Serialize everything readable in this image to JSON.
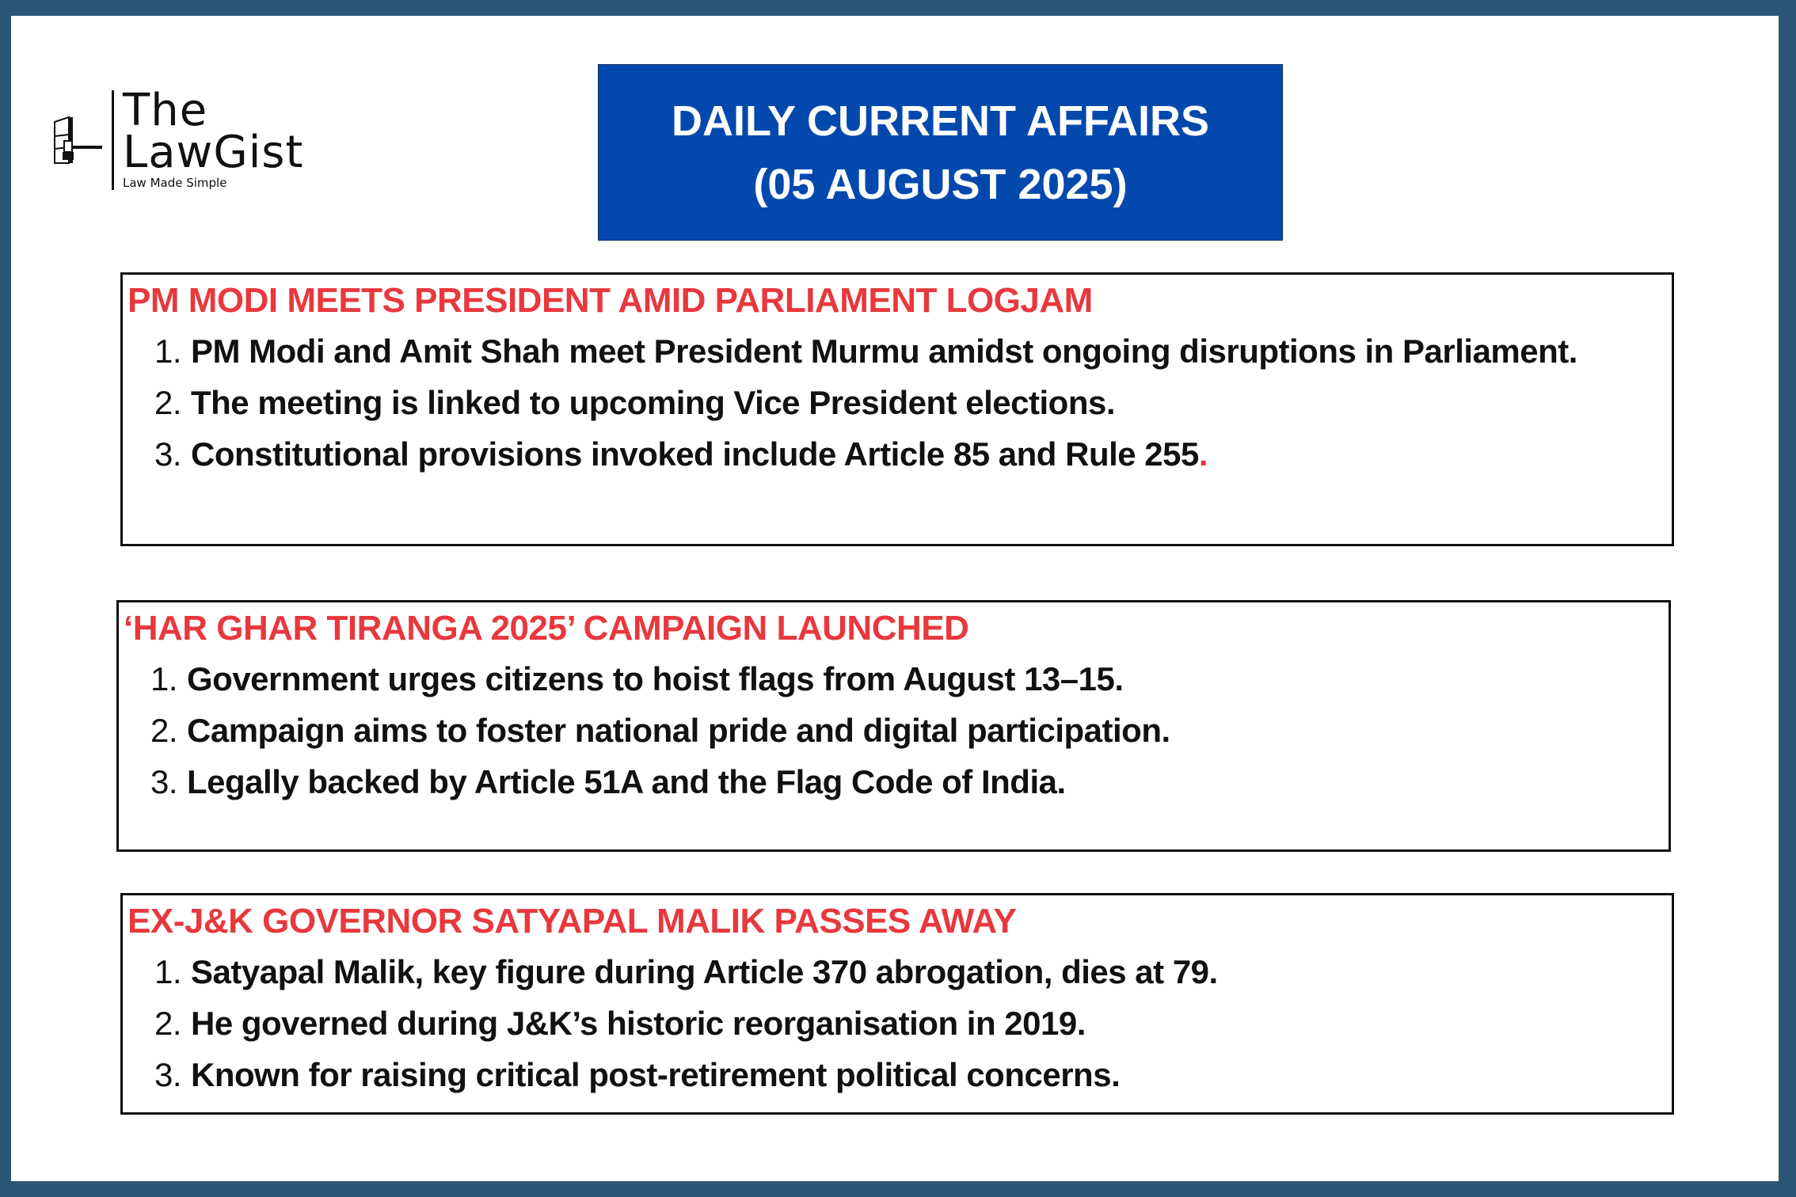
{
  "brand": {
    "line1": "The",
    "line2": "LawGist",
    "tagline": "Law Made Simple",
    "icon": "book-gavel-icon"
  },
  "banner": {
    "line1": "DAILY CURRENT AFFAIRS",
    "line2": "(05 AUGUST 2025)"
  },
  "colors": {
    "border": "#2b5676",
    "banner": "#0349ad",
    "heading": "#e8383d"
  },
  "sections": [
    {
      "title": "PM MODI MEETS PRESIDENT AMID PARLIAMENT LOGJAM",
      "items": [
        {
          "num": "1.",
          "text": "PM Modi and Amit Shah meet President Murmu amidst ongoing disruptions in Parliament."
        },
        {
          "num": "2.",
          "text": "The meeting is linked to upcoming Vice President elections."
        },
        {
          "num": "3.",
          "text": "Constitutional provisions invoked include Article 85 and Rule 255",
          "suffix": "."
        }
      ]
    },
    {
      "title": "‘HAR GHAR TIRANGA 2025’ CAMPAIGN LAUNCHED",
      "items": [
        {
          "num": "1.",
          "text": "Government urges citizens to hoist flags from August 13–15."
        },
        {
          "num": "2.",
          "text": "Campaign aims to foster national pride and digital participation."
        },
        {
          "num": "3.",
          "text": "Legally backed by Article 51A and the Flag Code of India."
        }
      ]
    },
    {
      "title": "EX-J&K GOVERNOR SATYAPAL MALIK PASSES AWAY",
      "items": [
        {
          "num": "1.",
          "text": "Satyapal Malik, key figure during Article 370 abrogation, dies at 79."
        },
        {
          "num": "2.",
          "text": "He governed during J&K’s historic reorganisation in 2019."
        },
        {
          "num": "3.",
          "text": "Known for raising critical post-retirement political concerns."
        }
      ]
    }
  ]
}
